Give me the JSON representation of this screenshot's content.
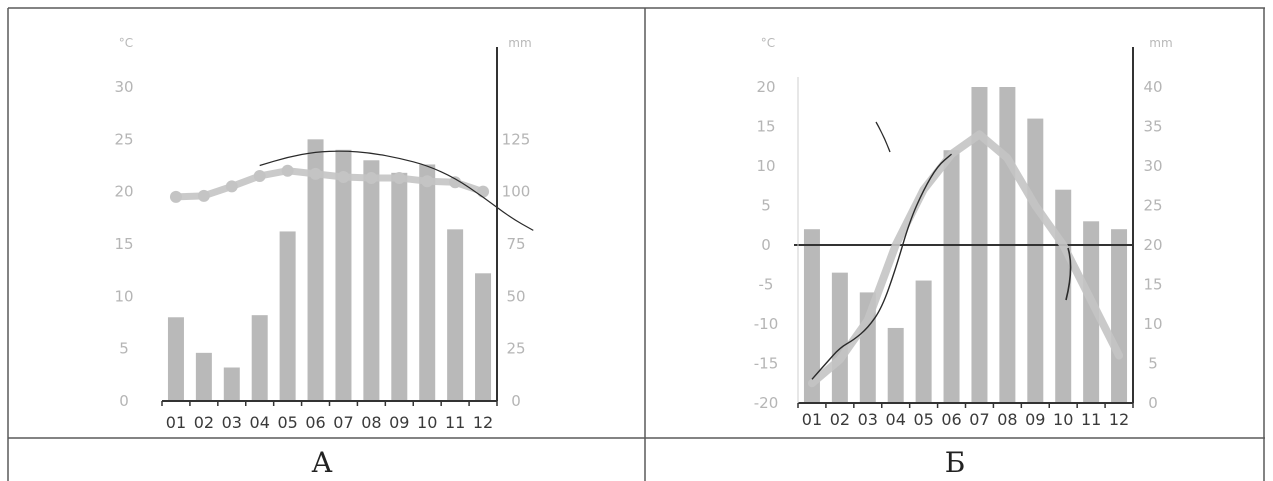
{
  "captions": [
    "А",
    "Б"
  ],
  "chart_data": [
    {
      "type": "bar+line",
      "caption": "А",
      "categories": [
        "01",
        "02",
        "03",
        "04",
        "05",
        "06",
        "07",
        "08",
        "09",
        "10",
        "11",
        "12"
      ],
      "left_axis": {
        "unit": "°C",
        "ylim": [
          0,
          30
        ],
        "ticks": [
          0,
          5,
          10,
          15,
          20,
          25,
          30
        ]
      },
      "right_axis": {
        "unit": "mm",
        "ylim": [
          0,
          150
        ],
        "ticks": [
          0,
          25,
          50,
          75,
          100,
          125
        ]
      },
      "series": [
        {
          "kind": "bar",
          "axis": "right",
          "values": [
            40,
            23,
            16,
            41,
            81,
            125,
            120,
            115,
            109,
            113,
            82,
            61
          ]
        },
        {
          "kind": "line",
          "axis": "left",
          "values": [
            19.5,
            19.6,
            20.5,
            21.5,
            22.0,
            21.7,
            21.4,
            21.3,
            21.3,
            21.0,
            20.9,
            20.0
          ]
        }
      ],
      "annotation_curve": [
        [
          4,
          22.5
        ],
        [
          5,
          23.3
        ],
        [
          6,
          23.8
        ],
        [
          7,
          23.9
        ],
        [
          8,
          23.7
        ],
        [
          9,
          23.2
        ],
        [
          10,
          22.5
        ],
        [
          11,
          21.3
        ],
        [
          12,
          19.5
        ],
        [
          13,
          17.5
        ],
        [
          13.8,
          16.3
        ]
      ],
      "colors": {
        "bar": "#b9b9b9",
        "line": "#c4c4c4",
        "axis": "#333333",
        "curve": "#2a2a2a"
      }
    },
    {
      "type": "bar+line",
      "caption": "Б",
      "categories": [
        "01",
        "02",
        "03",
        "04",
        "05",
        "06",
        "07",
        "08",
        "09",
        "10",
        "11",
        "12"
      ],
      "left_axis": {
        "unit": "°C",
        "ylim": [
          -20,
          25
        ],
        "ticks": [
          -20,
          -15,
          -10,
          -5,
          0,
          5,
          10,
          15,
          20
        ]
      },
      "right_axis": {
        "unit": "mm",
        "ylim": [
          0,
          45
        ],
        "ticks": [
          0,
          5,
          10,
          15,
          20,
          25,
          30,
          35,
          40
        ]
      },
      "series": [
        {
          "kind": "bar",
          "axis": "right",
          "values": [
            22,
            16.5,
            14,
            9.5,
            15.5,
            32,
            40,
            40,
            36,
            27,
            23,
            22
          ]
        },
        {
          "kind": "line",
          "axis": "left",
          "values": [
            -17.5,
            -14.5,
            -9.5,
            0,
            7,
            11.5,
            14,
            11,
            5,
            0,
            -7,
            -14
          ]
        }
      ],
      "zero_line": 0,
      "annotation_curve": [
        [
          1,
          -17
        ],
        [
          1.5,
          -15
        ],
        [
          2,
          -13
        ],
        [
          2.5,
          -12
        ],
        [
          3,
          -10.5
        ],
        [
          3.5,
          -8
        ],
        [
          4,
          -3
        ],
        [
          4.5,
          3
        ],
        [
          5,
          7
        ],
        [
          5.5,
          10
        ],
        [
          6,
          11.5
        ]
      ],
      "colors": {
        "bar": "#b9b9b9",
        "line": "#c4c4c4",
        "axis": "#333333",
        "curve": "#2a2a2a"
      }
    }
  ]
}
